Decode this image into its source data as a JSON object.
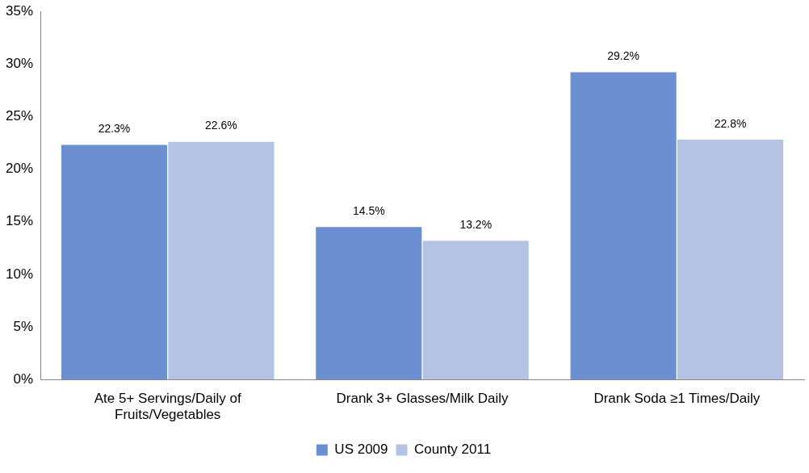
{
  "chart_data": {
    "type": "bar",
    "categories": [
      "Ate 5+ Servings/Daily of Fruits/Vegetables",
      "Drank 3+ Glasses/Milk Daily",
      "Drank Soda ≥1 Times/Daily"
    ],
    "series": [
      {
        "name": "US 2009",
        "color": "#6b8fd0",
        "values": [
          22.3,
          14.5,
          29.2
        ],
        "value_labels": [
          "22.3%",
          "14.5%",
          "29.2%"
        ]
      },
      {
        "name": "County 2011",
        "color": "#b4c3e4",
        "values": [
          22.6,
          13.2,
          22.8
        ],
        "value_labels": [
          "22.6%",
          "13.2%",
          "22.8%"
        ]
      }
    ],
    "ylim": [
      0,
      35
    ],
    "yticks": [
      {
        "value": 0,
        "label": "0%"
      },
      {
        "value": 5,
        "label": "5%"
      },
      {
        "value": 10,
        "label": "10%"
      },
      {
        "value": 15,
        "label": "15%"
      },
      {
        "value": 20,
        "label": "20%"
      },
      {
        "value": 25,
        "label": "25%"
      },
      {
        "value": 30,
        "label": "30%"
      },
      {
        "value": 35,
        "label": "35%"
      }
    ],
    "grid": false,
    "legend": "bottom"
  }
}
